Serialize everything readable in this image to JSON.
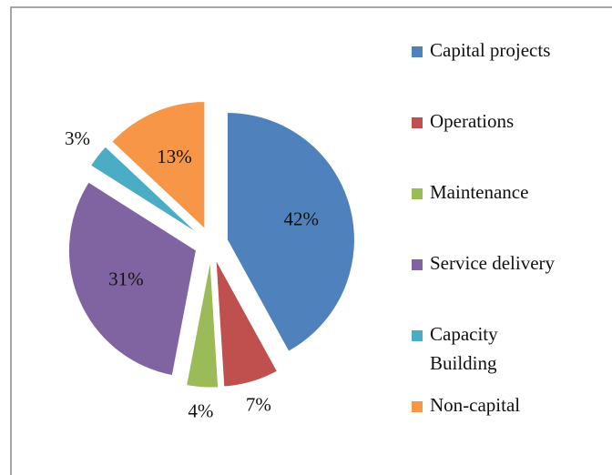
{
  "chart_data": {
    "type": "pie",
    "categories": [
      "Capital projects",
      "Operations",
      "Maintenance",
      "Service delivery",
      "Capacity Building",
      "Non-capital"
    ],
    "values": [
      42,
      7,
      4,
      31,
      3,
      13
    ],
    "value_labels": [
      "42%",
      "7%",
      "4%",
      "31%",
      "3%",
      "13%"
    ],
    "colors": [
      "#4f81bd",
      "#c0504d",
      "#9bbb59",
      "#8064a2",
      "#4bacc6",
      "#f79646"
    ],
    "legend": "right"
  }
}
